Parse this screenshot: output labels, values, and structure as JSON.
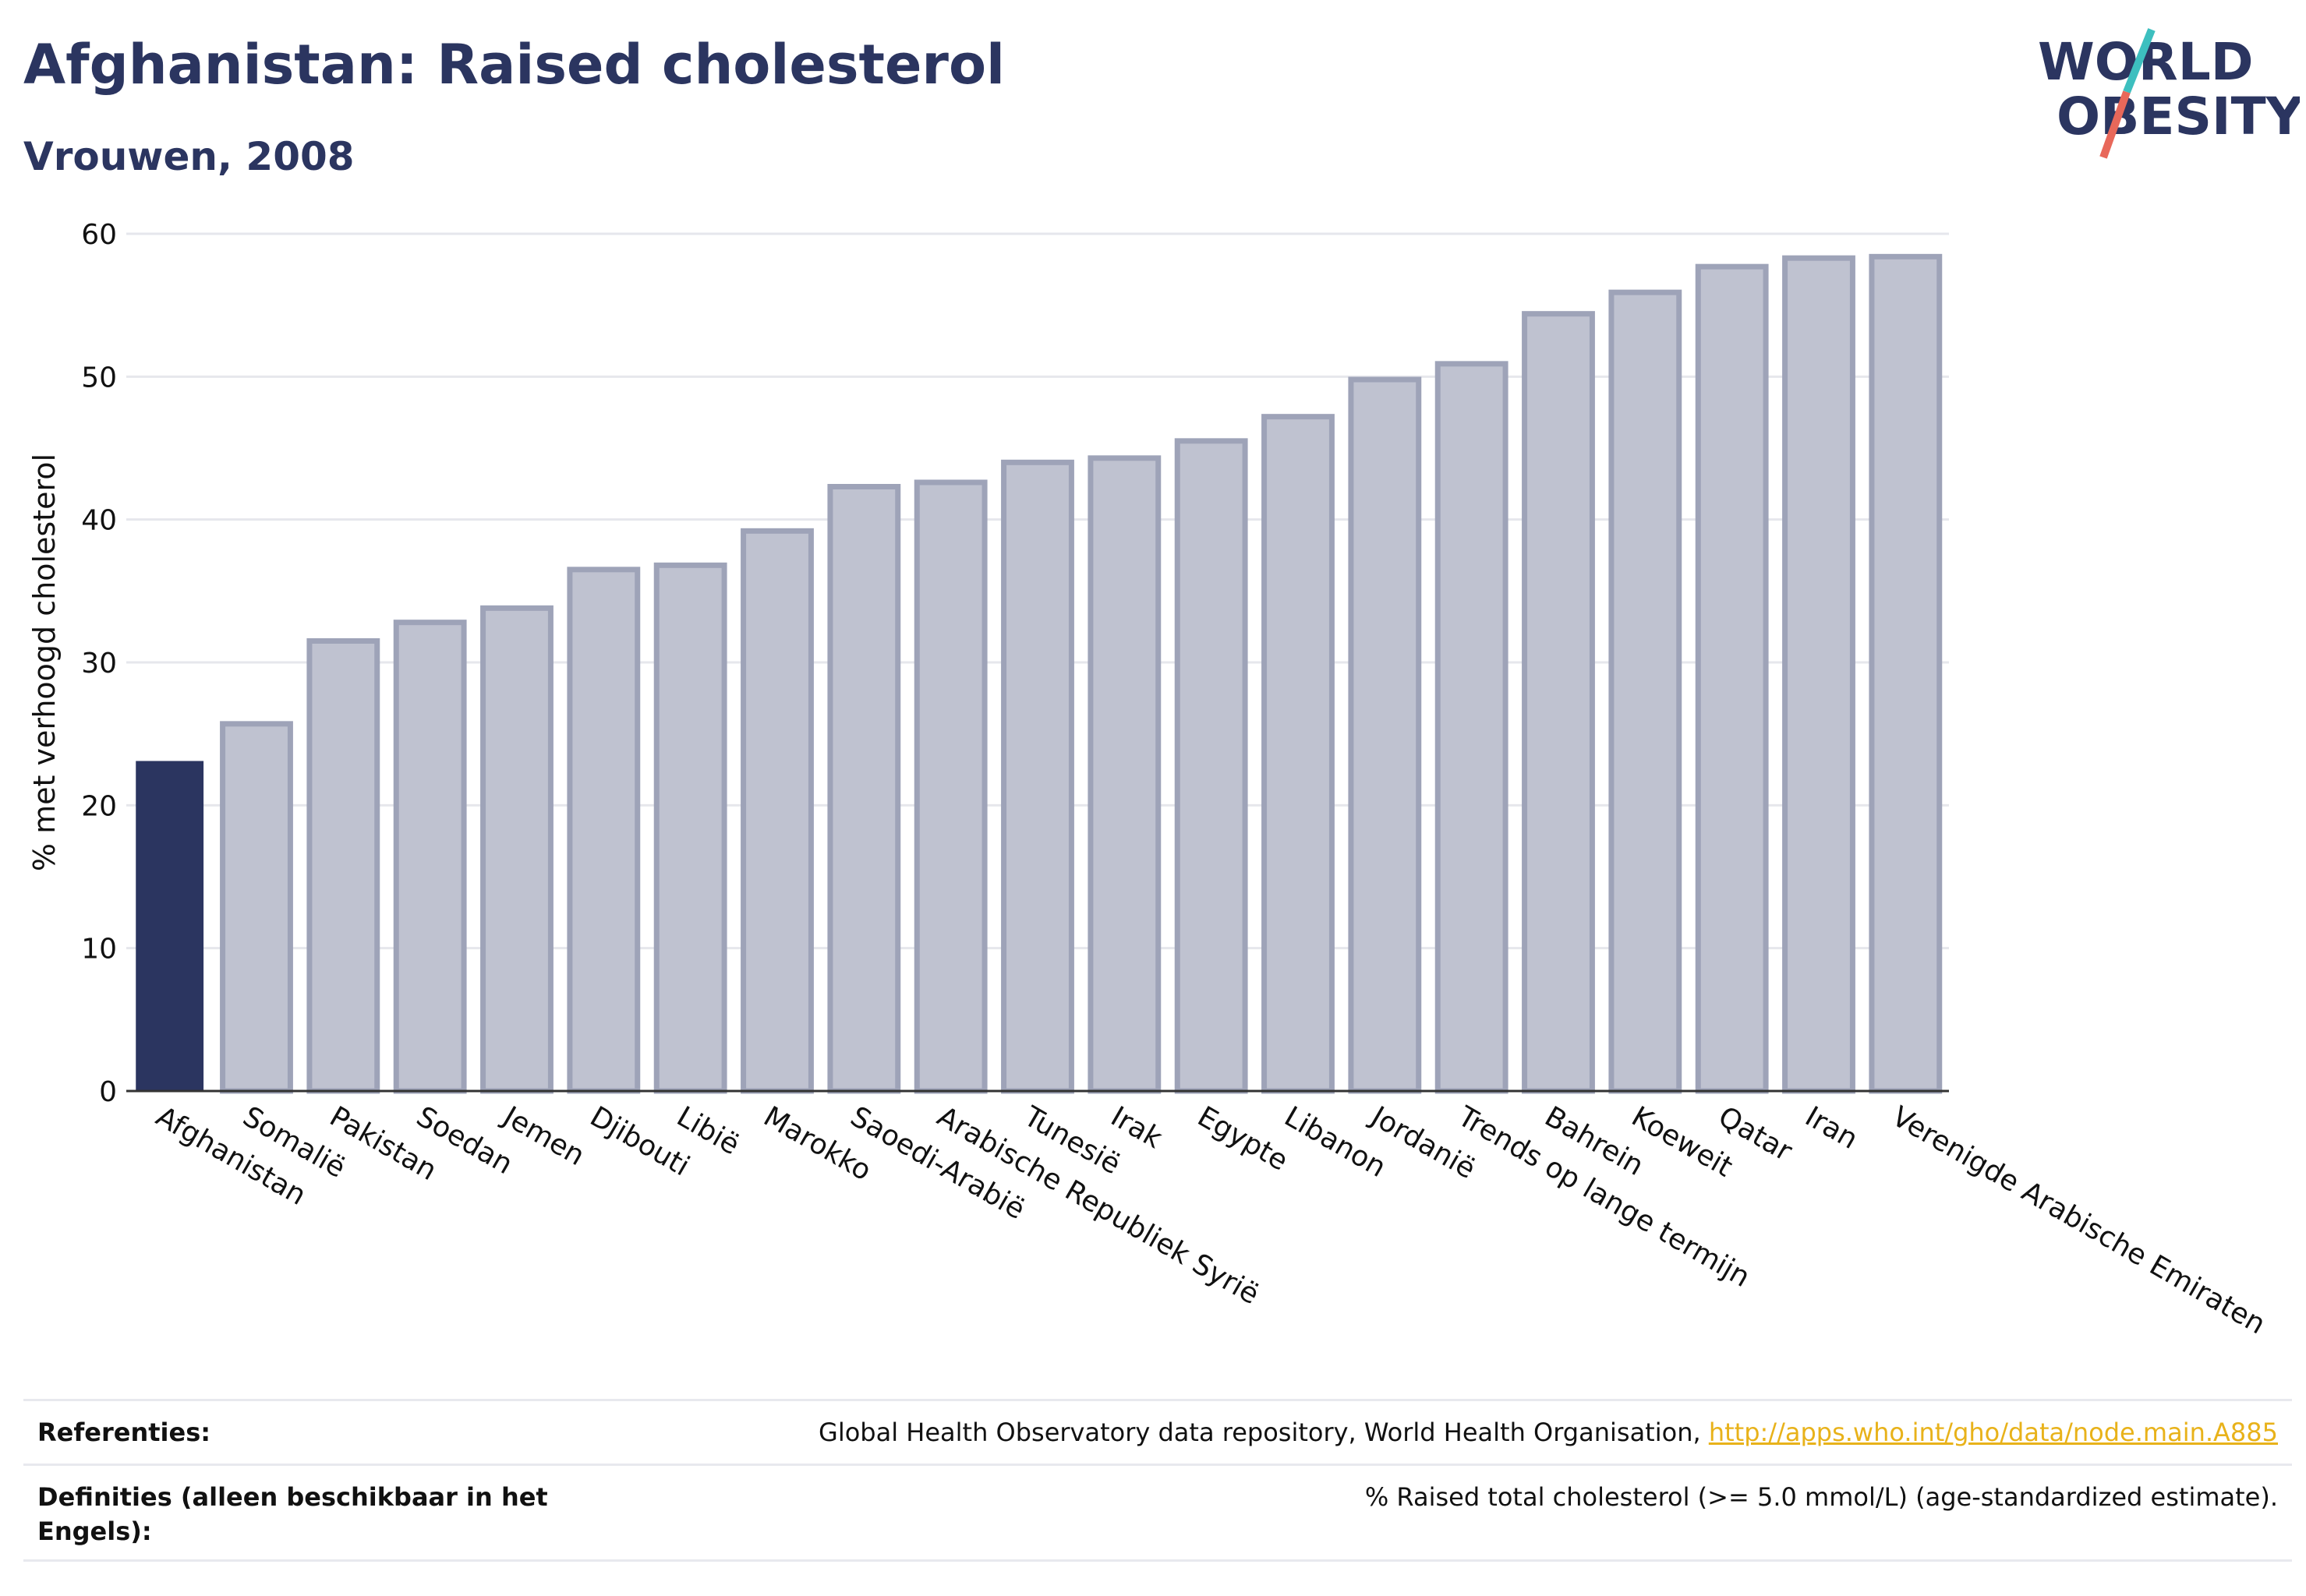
{
  "header": {
    "title": "Afghanistan: Raised cholesterol",
    "subtitle": "Vrouwen, 2008"
  },
  "logo": {
    "line1": "WORLD",
    "line2": "OBESITY"
  },
  "colors": {
    "highlight": "#2b3560",
    "bar_fill": "#bfc2d0",
    "bar_stroke": "#9ea3b8",
    "accent_teal": "#3dbfbf",
    "accent_red": "#e8685a",
    "link": "#e8b21a"
  },
  "chart_data": {
    "type": "bar",
    "ylabel": "% met verhoogd cholesterol",
    "xlabel": "",
    "ylim": [
      0,
      60
    ],
    "yticks": [
      0,
      10,
      20,
      30,
      40,
      50,
      60
    ],
    "grid": true,
    "highlight_category": "Afghanistan",
    "categories": [
      "Afghanistan",
      "Somalië",
      "Pakistan",
      "Soedan",
      "Jemen",
      "Djibouti",
      "Libië",
      "Marokko",
      "Saoedi-Arabië",
      "Arabische Republiek Syrië",
      "Tunesië",
      "Irak",
      "Egypte",
      "Libanon",
      "Jordanië",
      "Trends op lange termijn",
      "Bahrein",
      "Koeweit",
      "Qatar",
      "Iran",
      "Verenigde Arabische Emiraten"
    ],
    "values": [
      23.1,
      25.7,
      31.5,
      32.8,
      33.8,
      36.5,
      36.8,
      39.2,
      42.3,
      42.6,
      44.0,
      44.3,
      45.5,
      47.2,
      49.8,
      50.9,
      54.4,
      55.9,
      57.7,
      58.3,
      58.4
    ]
  },
  "references": {
    "ref_label": "Referenties:",
    "ref_text": "Global Health Observatory data repository, World Health Organisation, ",
    "ref_link": "http://apps.who.int/gho/data/node.main.A885",
    "def_label_1": "Definities (alleen beschikbaar in het",
    "def_label_2": "Engels):",
    "def_text": "% Raised total cholesterol (>= 5.0 mmol/L) (age-standardized estimate)."
  }
}
